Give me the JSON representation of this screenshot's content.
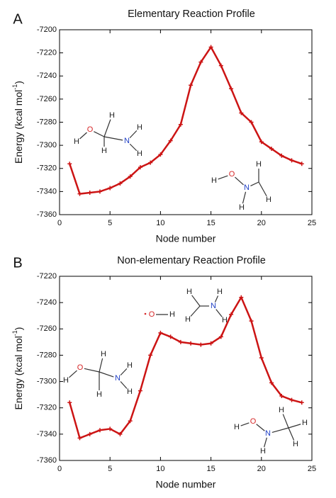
{
  "chart_data": [
    {
      "type": "line",
      "panel_label": "A",
      "title": "Elementary Reaction Profile",
      "x_label": "Node number",
      "y_label": "Energy (kcal mol",
      "y_label_sup": "-1",
      "y_label_end": ")",
      "x": [
        1,
        2,
        3,
        4,
        5,
        6,
        7,
        8,
        9,
        10,
        11,
        12,
        13,
        14,
        15,
        16,
        17,
        18,
        19,
        20,
        21,
        22,
        23,
        24
      ],
      "series": [
        {
          "color": "#cc1414",
          "values": [
            -7316,
            -7342,
            -7341,
            -7340,
            -7337,
            -7333,
            -7327,
            -7319,
            -7315,
            -7308,
            -7296,
            -7282,
            -7248,
            -7228,
            -7215,
            -7231,
            -7251,
            -7272,
            -7280,
            -7297,
            -7303,
            -7309,
            -7313,
            -7316
          ]
        }
      ],
      "xlim": [
        0,
        25
      ],
      "xticks": [
        0,
        5,
        10,
        15,
        20,
        25
      ],
      "ylim": [
        -7360,
        -7200
      ],
      "yticks": [
        -7360,
        -7340,
        -7320,
        -7300,
        -7280,
        -7260,
        -7240,
        -7220,
        -7200
      ],
      "molecules": [
        {
          "atoms": [
            "H",
            "O",
            "H",
            "H",
            "N",
            "H",
            "H"
          ],
          "colors": [
            "#222",
            "#d62728",
            "#222",
            "#222",
            "#1f3fc4",
            "#222",
            "#222"
          ]
        },
        {
          "atoms": [
            "H",
            "O",
            "N",
            "H",
            "H",
            "H"
          ],
          "colors": [
            "#222",
            "#d62728",
            "#1f3fc4",
            "#222",
            "#222",
            "#222"
          ]
        }
      ]
    },
    {
      "type": "line",
      "panel_label": "B",
      "title": "Non-elementary Reaction Profile",
      "x_label": "Node number",
      "y_label": "Energy (kcal mol",
      "y_label_sup": "-1",
      "y_label_end": ")",
      "x": [
        1,
        2,
        3,
        4,
        5,
        6,
        7,
        8,
        9,
        10,
        11,
        12,
        13,
        14,
        15,
        16,
        17,
        18,
        19,
        20,
        21,
        22,
        23,
        24
      ],
      "series": [
        {
          "color": "#cc1414",
          "values": [
            -7316,
            -7343,
            -7340,
            -7337,
            -7336,
            -7340,
            -7330,
            -7307,
            -7280,
            -7263,
            -7266,
            -7270,
            -7271,
            -7272,
            -7271,
            -7266,
            -7249,
            -7236,
            -7254,
            -7282,
            -7301,
            -7311,
            -7314,
            -7316
          ]
        }
      ],
      "xlim": [
        0,
        25
      ],
      "xticks": [
        0,
        5,
        10,
        15,
        20,
        25
      ],
      "ylim": [
        -7360,
        -7220
      ],
      "yticks": [
        -7360,
        -7340,
        -7320,
        -7300,
        -7280,
        -7260,
        -7240,
        -7220
      ],
      "molecules": [
        {
          "atoms": [
            "H",
            "O",
            "H",
            "H",
            "N",
            "H",
            "H"
          ],
          "colors": [
            "#222",
            "#d62728",
            "#222",
            "#222",
            "#1f3fc4",
            "#222",
            "#222"
          ]
        },
        {
          "atoms": [
            "O",
            "H"
          ],
          "colors": [
            "#d62728",
            "#222"
          ]
        },
        {
          "atoms": [
            "H",
            "H",
            "N",
            "H",
            "H"
          ],
          "colors": [
            "#222",
            "#222",
            "#1f3fc4",
            "#222",
            "#222"
          ]
        },
        {
          "atoms": [
            "H",
            "O",
            "N",
            "H",
            "H",
            "H",
            "H"
          ],
          "colors": [
            "#222",
            "#d62728",
            "#1f3fc4",
            "#222",
            "#222",
            "#222",
            "#222"
          ]
        }
      ]
    }
  ]
}
